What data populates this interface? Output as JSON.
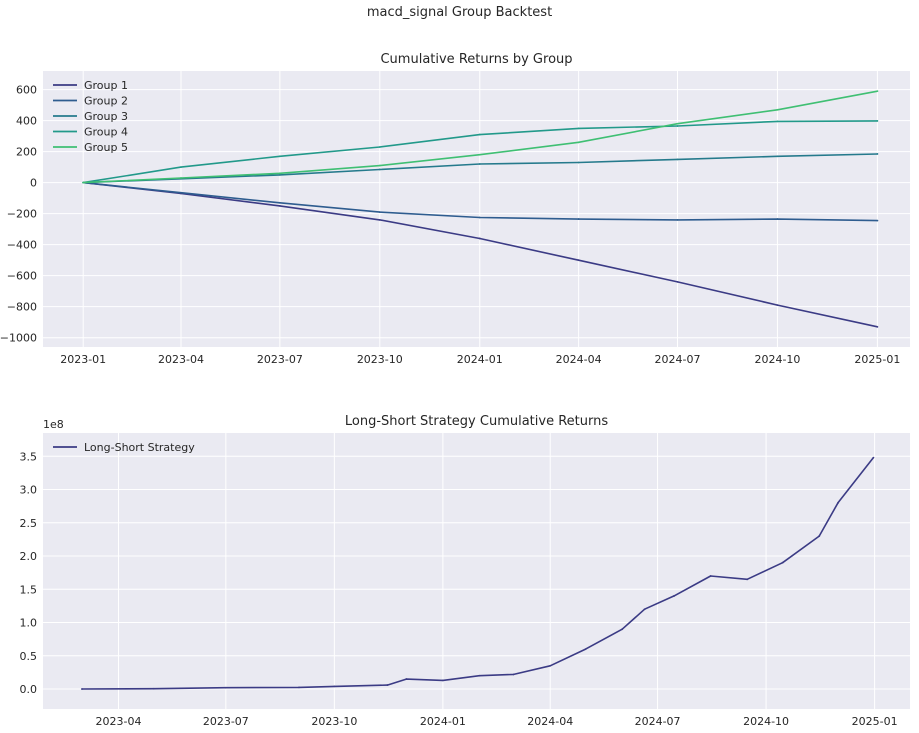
{
  "figure": {
    "suptitle": "macd_signal Group Backtest"
  },
  "chart_data": [
    {
      "type": "line",
      "title": "Cumulative Returns by Group",
      "xlabel": "",
      "ylabel": "",
      "x_type": "date",
      "xlim": [
        "2022-11-25",
        "2025-01-31"
      ],
      "ylim": [
        -1060,
        720
      ],
      "xticks": [
        "2023-01",
        "2023-04",
        "2023-07",
        "2023-10",
        "2024-01",
        "2024-04",
        "2024-07",
        "2024-10",
        "2025-01"
      ],
      "yticks": [
        600,
        400,
        200,
        0,
        -200,
        -400,
        -600,
        -800,
        -1000
      ],
      "grid": true,
      "legend_position": "top-left",
      "series": [
        {
          "name": "Group 1",
          "color": "#3b3b85",
          "x": [
            "2023-01-01",
            "2023-04-01",
            "2023-07-01",
            "2023-10-01",
            "2024-01-01",
            "2024-04-01",
            "2024-07-01",
            "2024-10-01",
            "2025-01-01"
          ],
          "y": [
            0,
            -70,
            -150,
            -240,
            -360,
            -500,
            -640,
            -790,
            -930
          ]
        },
        {
          "name": "Group 2",
          "color": "#2e5c8f",
          "x": [
            "2023-01-01",
            "2023-04-01",
            "2023-07-01",
            "2023-10-01",
            "2024-01-01",
            "2024-04-01",
            "2024-07-01",
            "2024-10-01",
            "2025-01-01"
          ],
          "y": [
            0,
            -65,
            -130,
            -190,
            -225,
            -235,
            -240,
            -235,
            -245
          ]
        },
        {
          "name": "Group 3",
          "color": "#257a8c",
          "x": [
            "2023-01-01",
            "2023-04-01",
            "2023-07-01",
            "2023-10-01",
            "2024-01-01",
            "2024-04-01",
            "2024-07-01",
            "2024-10-01",
            "2025-01-01"
          ],
          "y": [
            0,
            25,
            50,
            85,
            120,
            130,
            150,
            170,
            185
          ]
        },
        {
          "name": "Group 4",
          "color": "#22998a",
          "x": [
            "2023-01-01",
            "2023-04-01",
            "2023-07-01",
            "2023-10-01",
            "2024-01-01",
            "2024-04-01",
            "2024-07-01",
            "2024-10-01",
            "2025-01-01"
          ],
          "y": [
            0,
            100,
            170,
            230,
            310,
            350,
            365,
            395,
            398
          ]
        },
        {
          "name": "Group 5",
          "color": "#3fbf73",
          "x": [
            "2023-01-01",
            "2023-04-01",
            "2023-07-01",
            "2023-10-01",
            "2024-01-01",
            "2024-04-01",
            "2024-07-01",
            "2024-10-01",
            "2025-01-01"
          ],
          "y": [
            0,
            30,
            60,
            110,
            180,
            260,
            380,
            470,
            590
          ]
        }
      ]
    },
    {
      "type": "line",
      "title": "Long-Short Strategy Cumulative Returns",
      "xlabel": "",
      "ylabel": "",
      "x_type": "date",
      "offset_label": "1e8",
      "xlim": [
        "2023-01-27",
        "2025-01-31"
      ],
      "ylim": [
        -0.3,
        3.85
      ],
      "xticks": [
        "2023-04",
        "2023-07",
        "2023-10",
        "2024-01",
        "2024-04",
        "2024-07",
        "2024-10",
        "2025-01"
      ],
      "yticks": [
        "3.5",
        "3.0",
        "2.5",
        "2.0",
        "1.5",
        "1.0",
        "0.5",
        "0.0"
      ],
      "grid": true,
      "legend_position": "top-left",
      "series": [
        {
          "name": "Long-Short Strategy",
          "color": "#3b3b85",
          "x": [
            "2023-03-01",
            "2023-05-01",
            "2023-07-01",
            "2023-09-01",
            "2023-10-01",
            "2023-11-15",
            "2023-12-01",
            "2024-01-01",
            "2024-02-01",
            "2024-03-01",
            "2024-04-01",
            "2024-05-01",
            "2024-06-01",
            "2024-06-20",
            "2024-07-15",
            "2024-08-15",
            "2024-09-15",
            "2024-10-15",
            "2024-11-15",
            "2024-12-01",
            "2024-12-31"
          ],
          "y": [
            0.0,
            0.005,
            0.02,
            0.025,
            0.04,
            0.06,
            0.15,
            0.13,
            0.2,
            0.22,
            0.35,
            0.6,
            0.9,
            1.2,
            1.4,
            1.7,
            1.65,
            1.9,
            2.3,
            2.8,
            3.48
          ]
        }
      ]
    }
  ]
}
